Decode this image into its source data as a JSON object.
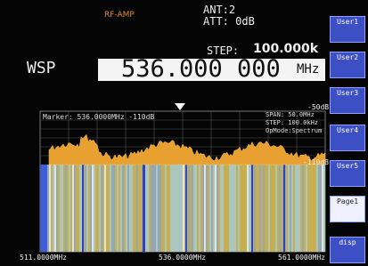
{
  "header": {
    "rf_amp": "RF-AMP",
    "ant": "ANT:2",
    "att": "ATT: 0dB",
    "step_label": "STEP:",
    "step_value": "100.000k",
    "mode": "WSP",
    "frequency": "536.000 000",
    "frequency_unit": "MHz"
  },
  "scope": {
    "ref_level": "-50dB",
    "marker": "Marker: 536.0000MHz -110dB",
    "span": "SPAN: 50.0MHz",
    "step": "STEP: 100.0kHz",
    "opmode": "OpMode:Spectrum",
    "floor_level": "-110dB",
    "x_labels": [
      "511.0000MHz",
      "536.0000MHz",
      "561.0000MHz"
    ]
  },
  "buttons": [
    "User1",
    "User2",
    "User3",
    "User4",
    "User5",
    "Page1",
    "disp"
  ]
}
